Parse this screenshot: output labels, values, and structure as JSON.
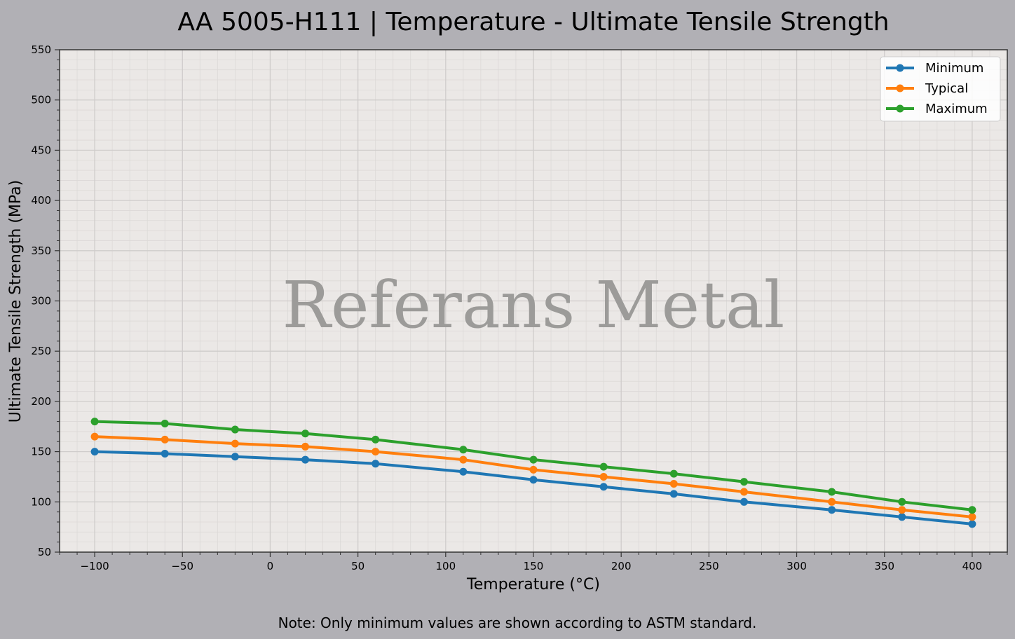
{
  "chart_data": {
    "type": "line",
    "title": "AA 5005-H111 | Temperature - Ultimate Tensile Strength",
    "xlabel": "Temperature (°C)",
    "ylabel": "Ultimate Tensile Strength (MPa)",
    "xlim": [
      -120,
      420
    ],
    "ylim": [
      50,
      550
    ],
    "xticks": [
      -100,
      -50,
      0,
      50,
      100,
      150,
      200,
      250,
      300,
      350,
      400
    ],
    "xtick_labels": [
      "−100",
      "−50",
      "0",
      "50",
      "100",
      "150",
      "200",
      "250",
      "300",
      "350",
      "400"
    ],
    "yticks": [
      50,
      100,
      150,
      200,
      250,
      300,
      350,
      400,
      450,
      500,
      550
    ],
    "grid": true,
    "minor_grid": true,
    "legend_position": "top-right",
    "x": [
      -100,
      -60,
      -20,
      20,
      60,
      110,
      150,
      190,
      230,
      270,
      320,
      360,
      400
    ],
    "series": [
      {
        "name": "Minimum",
        "color": "#1f77b4",
        "values": [
          150,
          148,
          145,
          142,
          138,
          130,
          122,
          115,
          108,
          100,
          92,
          85,
          78
        ]
      },
      {
        "name": "Typical",
        "color": "#ff7f0e",
        "values": [
          165,
          162,
          158,
          155,
          150,
          142,
          132,
          125,
          118,
          110,
          100,
          92,
          85
        ]
      },
      {
        "name": "Maximum",
        "color": "#2ca02c",
        "values": [
          180,
          178,
          172,
          168,
          162,
          152,
          142,
          135,
          128,
          120,
          110,
          100,
          92
        ]
      }
    ],
    "watermark": "Referans Metal",
    "note": "Note: Only minimum values are shown according to ASTM standard."
  },
  "colors": {
    "figure_bg": "#b1b0b5",
    "plot_bg": "#ebe8e6"
  }
}
